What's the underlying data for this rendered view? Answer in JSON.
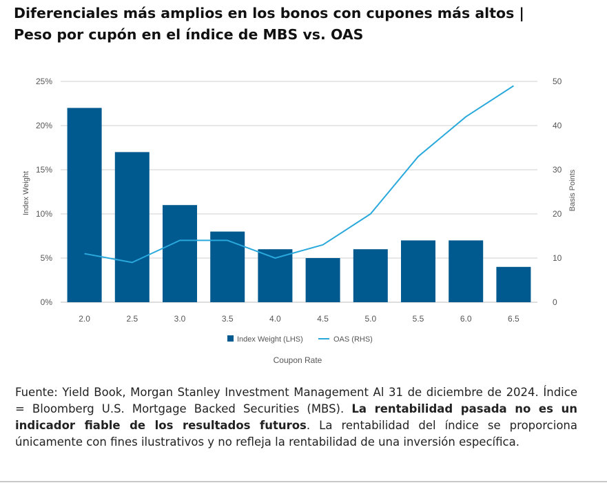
{
  "title": {
    "line1": "Diferenciales más amplios en los bonos con cupones más altos |",
    "line2": "Peso por cupón en el índice de MBS vs. OAS"
  },
  "colors": {
    "bars": "#00598f",
    "line": "#29a8dc",
    "grid": "#cfcfcf"
  },
  "chart_data": {
    "type": "bar",
    "categories": [
      "2.0",
      "2.5",
      "3.0",
      "3.5",
      "4.0",
      "4.5",
      "5.0",
      "5.5",
      "6.0",
      "6.5"
    ],
    "series": [
      {
        "name": "Index Weight (LHS)",
        "type": "bar",
        "axis": "left",
        "values": [
          22,
          17,
          11,
          8,
          6,
          5,
          6,
          7,
          7,
          4
        ]
      },
      {
        "name": "OAS (RHS)",
        "type": "line",
        "axis": "right",
        "values": [
          11,
          9,
          14,
          14,
          10,
          13,
          20,
          33,
          42,
          49
        ]
      }
    ],
    "xlabel": "Coupon Rate",
    "ylabel_left": "Index Weight",
    "ylabel_right": "Basis Points",
    "ylim_left": [
      0,
      25
    ],
    "ylim_right": [
      0,
      50
    ],
    "yticks_left": [
      "0%",
      "5%",
      "10%",
      "15%",
      "20%",
      "25%"
    ],
    "yticks_right": [
      "0",
      "10",
      "20",
      "30",
      "40",
      "50"
    ],
    "grid": true,
    "legend_position": "bottom"
  },
  "source": {
    "part1": "Fuente: Yield Book, Morgan Stanley Investment Management Al 31 de diciembre de 2024. Índice = Bloomberg U.S. Mortgage Backed Securities (MBS).",
    "bold": "La rentabilidad pasada no es un indicador fiable de los resultados futuros",
    "part2": ". La rentabilidad del índice se proporciona únicamente con fines ilustrativos y no refleja la rentabilidad de una inversión específica."
  }
}
